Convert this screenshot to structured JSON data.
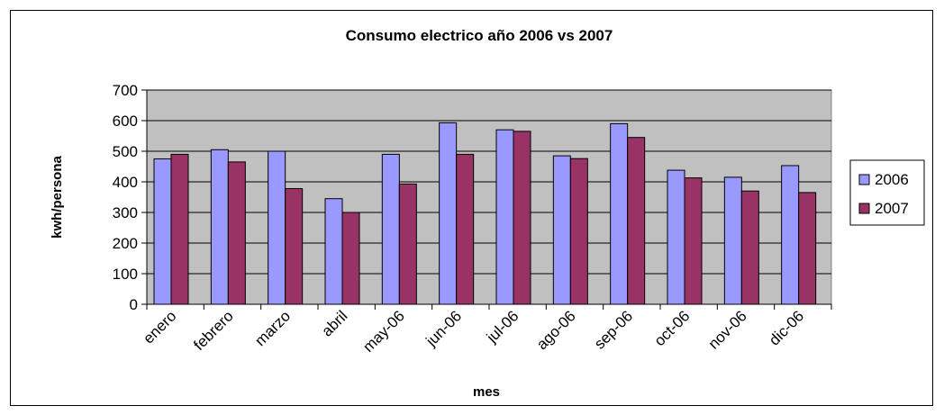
{
  "chart_data": {
    "type": "bar",
    "title": "Consumo electrico año 2006 vs 2007",
    "xlabel": "mes",
    "ylabel": "kwh/persona",
    "categories": [
      "enero",
      "febrero",
      "marzo",
      "abril",
      "may-06",
      "jun-06",
      "jul-06",
      "ago-06",
      "sep-06",
      "oct-06",
      "nov-06",
      "dic-06"
    ],
    "series": [
      {
        "name": "2006",
        "color": "#9999ff",
        "values": [
          475,
          505,
          500,
          345,
          490,
          593,
          570,
          485,
          590,
          438,
          415,
          453
        ]
      },
      {
        "name": "2007",
        "color": "#993366",
        "values": [
          490,
          465,
          378,
          300,
          393,
          490,
          565,
          476,
          545,
          413,
          370,
          365
        ]
      }
    ],
    "ylim": [
      0,
      700
    ],
    "yticks": [
      0,
      100,
      200,
      300,
      400,
      500,
      600,
      700
    ],
    "grid": true,
    "plot_background": "#c0c0c0",
    "legend_position": "right"
  }
}
